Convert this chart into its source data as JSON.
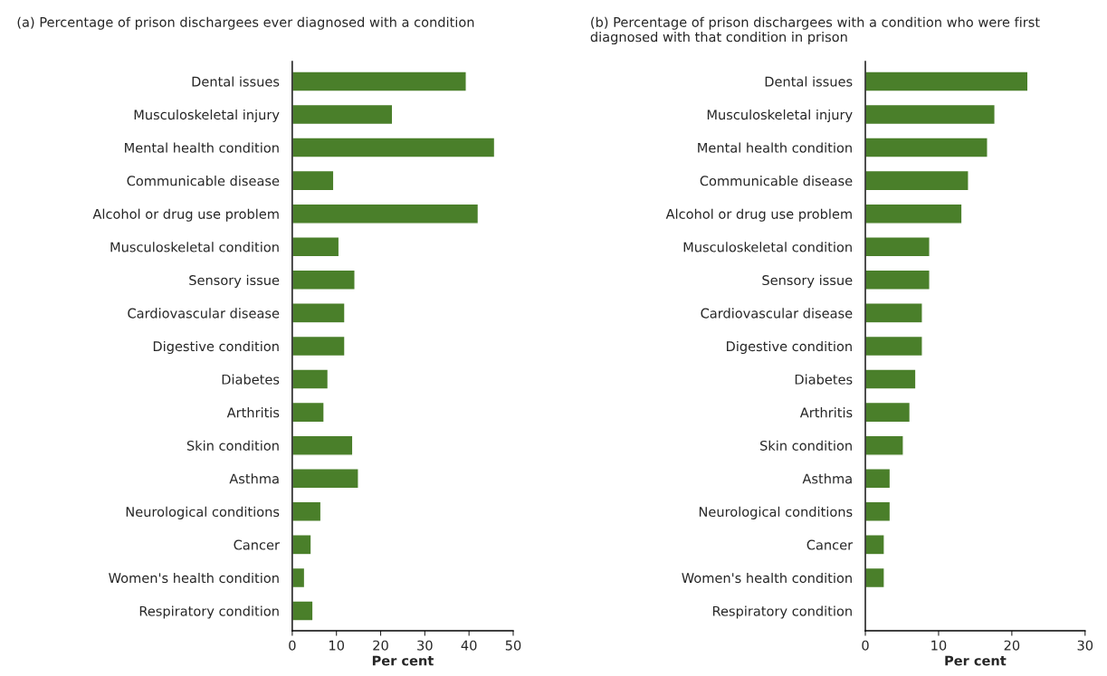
{
  "chart_data": [
    {
      "type": "bar",
      "orientation": "horizontal",
      "title": "(a) Percentage of prison dischargees ever diagnosed with a condition",
      "xlabel": "Per cent",
      "categories": [
        "Dental issues",
        "Musculoskeletal injury",
        "Mental health condition",
        "Communicable disease",
        "Alcohol or drug use problem",
        "Musculoskeletal condition",
        "Sensory issue",
        "Cardiovascular disease",
        "Digestive condition",
        "Diabetes",
        "Arthritis",
        "Skin condition",
        "Asthma",
        "Neurological conditions",
        "Cancer",
        "Women's health condition",
        "Respiratory condition"
      ],
      "values": [
        39.4,
        22.7,
        45.8,
        9.4,
        42.1,
        10.6,
        14.2,
        11.9,
        11.9,
        8.1,
        7.2,
        13.7,
        15.0,
        6.5,
        4.3,
        2.8,
        4.7
      ],
      "color": "#4a7f2a",
      "xlim": [
        0,
        50
      ],
      "xticks": [
        0,
        10,
        20,
        30,
        40,
        50
      ],
      "grid": false,
      "legend": false
    },
    {
      "type": "bar",
      "orientation": "horizontal",
      "title": "(b) Percentage of prison dischargees with a condition who were first diagnosed with that condition in prison",
      "xlabel": "Per cent",
      "categories": [
        "Dental issues",
        "Musculoskeletal injury",
        "Mental health condition",
        "Communicable disease",
        "Alcohol or drug use problem",
        "Musculoskeletal condition",
        "Sensory issue",
        "Cardiovascular disease",
        "Digestive condition",
        "Diabetes",
        "Arthritis",
        "Skin condition",
        "Asthma",
        "Neurological conditions",
        "Cancer",
        "Women's health condition",
        "Respiratory condition"
      ],
      "values": [
        22.2,
        17.7,
        16.7,
        14.1,
        13.2,
        8.8,
        8.8,
        7.8,
        7.8,
        6.9,
        6.1,
        5.2,
        3.4,
        3.4,
        2.6,
        2.6,
        null
      ],
      "color": "#4a7f2a",
      "xlim": [
        0,
        30
      ],
      "xticks": [
        0,
        10,
        20,
        30
      ],
      "grid": false,
      "legend": false
    }
  ]
}
